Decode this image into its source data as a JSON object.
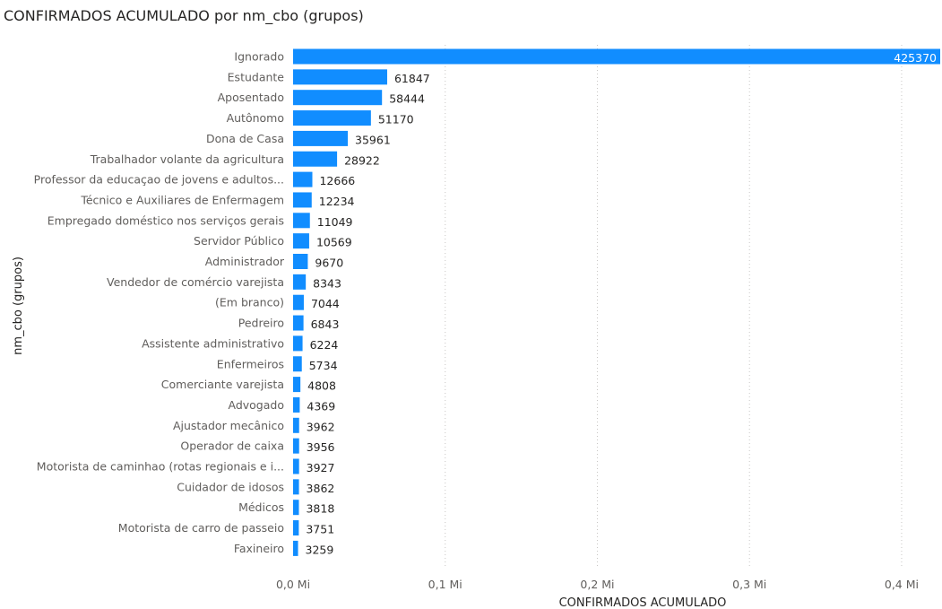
{
  "chart_data": {
    "type": "bar",
    "orientation": "horizontal",
    "title": "CONFIRMADOS ACUMULADO por nm_cbo (grupos)",
    "xlabel": "CONFIRMADOS ACUMULADO",
    "ylabel": "nm_cbo (grupos)",
    "xlim": [
      0,
      425370
    ],
    "xticks": [
      {
        "value": 0,
        "label": "0,0 Mi"
      },
      {
        "value": 100000,
        "label": "0,1 Mi"
      },
      {
        "value": 200000,
        "label": "0,2 Mi"
      },
      {
        "value": 300000,
        "label": "0,3 Mi"
      },
      {
        "value": 400000,
        "label": "0,4 Mi"
      }
    ],
    "grid": true,
    "bar_color": "#118DFF",
    "categories": [
      "Ignorado",
      "Estudante",
      "Aposentado",
      "Autônomo",
      "Dona de Casa",
      "Trabalhador volante da agricultura",
      "Professor da educaçao de jovens e adultos...",
      "Técnico e Auxiliares de Enfermagem",
      "Empregado doméstico nos serviços gerais",
      "Servidor Público",
      "Administrador",
      "Vendedor de comércio varejista",
      "(Em branco)",
      "Pedreiro",
      "Assistente administrativo",
      "Enfermeiros",
      "Comerciante varejista",
      "Advogado",
      "Ajustador mecânico",
      "Operador de caixa",
      "Motorista de caminhao (rotas regionais e i...",
      "Cuidador de idosos",
      "Médicos",
      "Motorista de carro de passeio",
      "Faxineiro"
    ],
    "values": [
      425370,
      61847,
      58444,
      51170,
      35961,
      28922,
      12666,
      12234,
      11049,
      10569,
      9670,
      8343,
      7044,
      6843,
      6224,
      5734,
      4808,
      4369,
      3962,
      3956,
      3927,
      3862,
      3818,
      3751,
      3259
    ]
  }
}
